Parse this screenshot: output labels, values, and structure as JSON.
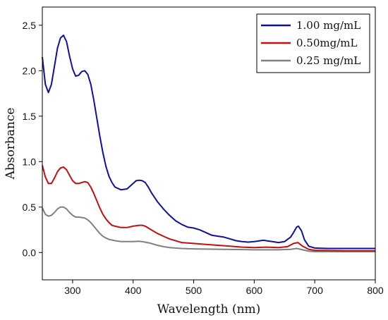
{
  "chart_data": {
    "type": "line",
    "title": "",
    "xlabel": "Wavelength (nm)",
    "ylabel": "Absorbance",
    "xlim": [
      250,
      800
    ],
    "ylim": [
      -0.3,
      2.7
    ],
    "xticks": [
      300,
      400,
      500,
      600,
      700,
      800
    ],
    "xtick_labels": [
      "300",
      "400",
      "500",
      "600",
      "700",
      "800"
    ],
    "yticks": [
      0.0,
      0.5,
      1.0,
      1.5,
      2.0,
      2.5
    ],
    "ytick_labels": [
      "0.0",
      "0.5",
      "1.0",
      "1.5",
      "2.0",
      "2.5"
    ],
    "grid": false,
    "legend_position": "top-right",
    "series": [
      {
        "name": "1.00 mg/mL",
        "color": "#1010a0",
        "points": [
          [
            250,
            2.15
          ],
          [
            255,
            1.85
          ],
          [
            260,
            1.76
          ],
          [
            265,
            1.85
          ],
          [
            270,
            2.05
          ],
          [
            275,
            2.25
          ],
          [
            280,
            2.36
          ],
          [
            285,
            2.39
          ],
          [
            290,
            2.32
          ],
          [
            295,
            2.16
          ],
          [
            300,
            2.02
          ],
          [
            305,
            1.94
          ],
          [
            310,
            1.95
          ],
          [
            315,
            1.99
          ],
          [
            320,
            2.0
          ],
          [
            325,
            1.96
          ],
          [
            330,
            1.85
          ],
          [
            335,
            1.68
          ],
          [
            340,
            1.48
          ],
          [
            345,
            1.28
          ],
          [
            350,
            1.1
          ],
          [
            355,
            0.95
          ],
          [
            360,
            0.84
          ],
          [
            365,
            0.77
          ],
          [
            370,
            0.72
          ],
          [
            380,
            0.69
          ],
          [
            390,
            0.7
          ],
          [
            395,
            0.73
          ],
          [
            400,
            0.76
          ],
          [
            405,
            0.79
          ],
          [
            410,
            0.795
          ],
          [
            415,
            0.79
          ],
          [
            420,
            0.77
          ],
          [
            425,
            0.72
          ],
          [
            430,
            0.66
          ],
          [
            440,
            0.56
          ],
          [
            450,
            0.48
          ],
          [
            460,
            0.41
          ],
          [
            470,
            0.35
          ],
          [
            480,
            0.31
          ],
          [
            490,
            0.28
          ],
          [
            500,
            0.27
          ],
          [
            510,
            0.25
          ],
          [
            520,
            0.22
          ],
          [
            530,
            0.19
          ],
          [
            540,
            0.18
          ],
          [
            550,
            0.17
          ],
          [
            560,
            0.15
          ],
          [
            570,
            0.13
          ],
          [
            580,
            0.12
          ],
          [
            590,
            0.115
          ],
          [
            600,
            0.12
          ],
          [
            610,
            0.13
          ],
          [
            615,
            0.135
          ],
          [
            620,
            0.13
          ],
          [
            630,
            0.12
          ],
          [
            640,
            0.11
          ],
          [
            650,
            0.12
          ],
          [
            660,
            0.17
          ],
          [
            665,
            0.22
          ],
          [
            670,
            0.28
          ],
          [
            673,
            0.29
          ],
          [
            678,
            0.24
          ],
          [
            683,
            0.14
          ],
          [
            690,
            0.07
          ],
          [
            700,
            0.05
          ],
          [
            720,
            0.045
          ],
          [
            750,
            0.045
          ],
          [
            800,
            0.045
          ]
        ]
      },
      {
        "name": "0.50mg/mL",
        "color": "#c01010",
        "points": [
          [
            250,
            0.96
          ],
          [
            255,
            0.83
          ],
          [
            260,
            0.76
          ],
          [
            265,
            0.76
          ],
          [
            270,
            0.82
          ],
          [
            275,
            0.89
          ],
          [
            280,
            0.93
          ],
          [
            285,
            0.94
          ],
          [
            290,
            0.91
          ],
          [
            295,
            0.85
          ],
          [
            300,
            0.79
          ],
          [
            305,
            0.76
          ],
          [
            310,
            0.76
          ],
          [
            315,
            0.77
          ],
          [
            320,
            0.78
          ],
          [
            325,
            0.77
          ],
          [
            330,
            0.72
          ],
          [
            335,
            0.65
          ],
          [
            340,
            0.57
          ],
          [
            345,
            0.49
          ],
          [
            350,
            0.42
          ],
          [
            355,
            0.37
          ],
          [
            360,
            0.33
          ],
          [
            365,
            0.3
          ],
          [
            370,
            0.29
          ],
          [
            380,
            0.275
          ],
          [
            390,
            0.275
          ],
          [
            400,
            0.29
          ],
          [
            410,
            0.3
          ],
          [
            415,
            0.3
          ],
          [
            420,
            0.29
          ],
          [
            430,
            0.25
          ],
          [
            440,
            0.21
          ],
          [
            450,
            0.18
          ],
          [
            460,
            0.15
          ],
          [
            470,
            0.13
          ],
          [
            480,
            0.11
          ],
          [
            500,
            0.1
          ],
          [
            520,
            0.09
          ],
          [
            540,
            0.08
          ],
          [
            560,
            0.07
          ],
          [
            580,
            0.06
          ],
          [
            600,
            0.055
          ],
          [
            620,
            0.06
          ],
          [
            640,
            0.055
          ],
          [
            655,
            0.065
          ],
          [
            665,
            0.1
          ],
          [
            672,
            0.11
          ],
          [
            680,
            0.07
          ],
          [
            690,
            0.035
          ],
          [
            700,
            0.025
          ],
          [
            750,
            0.02
          ],
          [
            800,
            0.02
          ]
        ]
      },
      {
        "name": "0.25 mg/mL",
        "color": "#808080",
        "points": [
          [
            250,
            0.49
          ],
          [
            255,
            0.42
          ],
          [
            260,
            0.4
          ],
          [
            265,
            0.41
          ],
          [
            270,
            0.44
          ],
          [
            275,
            0.48
          ],
          [
            280,
            0.5
          ],
          [
            285,
            0.5
          ],
          [
            290,
            0.48
          ],
          [
            295,
            0.44
          ],
          [
            300,
            0.41
          ],
          [
            305,
            0.39
          ],
          [
            310,
            0.39
          ],
          [
            315,
            0.385
          ],
          [
            320,
            0.38
          ],
          [
            325,
            0.36
          ],
          [
            330,
            0.33
          ],
          [
            335,
            0.29
          ],
          [
            340,
            0.25
          ],
          [
            345,
            0.21
          ],
          [
            350,
            0.18
          ],
          [
            355,
            0.16
          ],
          [
            360,
            0.145
          ],
          [
            370,
            0.13
          ],
          [
            380,
            0.12
          ],
          [
            400,
            0.12
          ],
          [
            410,
            0.125
          ],
          [
            420,
            0.115
          ],
          [
            430,
            0.1
          ],
          [
            440,
            0.08
          ],
          [
            450,
            0.065
          ],
          [
            460,
            0.055
          ],
          [
            480,
            0.045
          ],
          [
            500,
            0.04
          ],
          [
            550,
            0.035
          ],
          [
            600,
            0.03
          ],
          [
            640,
            0.03
          ],
          [
            660,
            0.035
          ],
          [
            670,
            0.045
          ],
          [
            680,
            0.03
          ],
          [
            690,
            0.015
          ],
          [
            700,
            0.01
          ],
          [
            750,
            0.01
          ],
          [
            800,
            0.01
          ]
        ]
      }
    ]
  }
}
